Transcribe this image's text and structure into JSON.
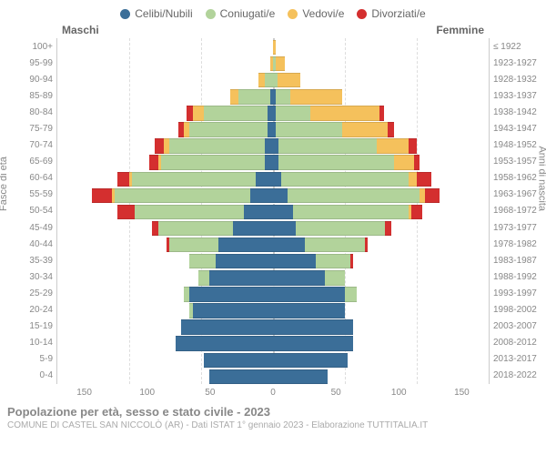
{
  "legend": [
    {
      "label": "Celibi/Nubili",
      "color": "#3b6e98"
    },
    {
      "label": "Coniugati/e",
      "color": "#b2d39b"
    },
    {
      "label": "Vedovi/e",
      "color": "#f5c15c"
    },
    {
      "label": "Divorziati/e",
      "color": "#d42f2f"
    }
  ],
  "column_headers": {
    "left": "Maschi",
    "right": "Femmine"
  },
  "y_axis_left_label": "Fasce di età",
  "y_axis_right_label": "Anni di nascita",
  "x_axis": {
    "max": 150,
    "ticks": [
      150,
      100,
      50,
      0,
      50,
      100,
      150
    ]
  },
  "age_bands": [
    {
      "age": "100+",
      "birth": "≤ 1922",
      "m": [
        0,
        0,
        0,
        0
      ],
      "f": [
        0,
        0,
        2,
        0
      ]
    },
    {
      "age": "95-99",
      "birth": "1923-1927",
      "m": [
        0,
        0,
        2,
        0
      ],
      "f": [
        0,
        2,
        6,
        0
      ]
    },
    {
      "age": "90-94",
      "birth": "1928-1932",
      "m": [
        0,
        6,
        4,
        0
      ],
      "f": [
        0,
        3,
        16,
        0
      ]
    },
    {
      "age": "85-89",
      "birth": "1933-1937",
      "m": [
        2,
        22,
        6,
        0
      ],
      "f": [
        2,
        10,
        36,
        0
      ]
    },
    {
      "age": "80-84",
      "birth": "1938-1942",
      "m": [
        4,
        44,
        8,
        4
      ],
      "f": [
        2,
        24,
        48,
        3
      ]
    },
    {
      "age": "75-79",
      "birth": "1943-1947",
      "m": [
        4,
        54,
        4,
        4
      ],
      "f": [
        2,
        46,
        32,
        4
      ]
    },
    {
      "age": "70-74",
      "birth": "1948-1952",
      "m": [
        6,
        66,
        4,
        6
      ],
      "f": [
        4,
        68,
        22,
        6
      ]
    },
    {
      "age": "65-69",
      "birth": "1953-1957",
      "m": [
        6,
        72,
        2,
        6
      ],
      "f": [
        4,
        80,
        14,
        4
      ]
    },
    {
      "age": "60-64",
      "birth": "1958-1962",
      "m": [
        12,
        86,
        2,
        8
      ],
      "f": [
        6,
        88,
        6,
        10
      ]
    },
    {
      "age": "55-59",
      "birth": "1963-1967",
      "m": [
        16,
        94,
        2,
        14
      ],
      "f": [
        10,
        92,
        4,
        10
      ]
    },
    {
      "age": "50-54",
      "birth": "1968-1972",
      "m": [
        20,
        76,
        0,
        12
      ],
      "f": [
        14,
        80,
        2,
        8
      ]
    },
    {
      "age": "45-49",
      "birth": "1973-1977",
      "m": [
        28,
        52,
        0,
        4
      ],
      "f": [
        16,
        62,
        0,
        4
      ]
    },
    {
      "age": "40-44",
      "birth": "1978-1982",
      "m": [
        38,
        34,
        0,
        2
      ],
      "f": [
        22,
        42,
        0,
        2
      ]
    },
    {
      "age": "35-39",
      "birth": "1983-1987",
      "m": [
        40,
        18,
        0,
        0
      ],
      "f": [
        30,
        24,
        0,
        2
      ]
    },
    {
      "age": "30-34",
      "birth": "1988-1992",
      "m": [
        44,
        8,
        0,
        0
      ],
      "f": [
        36,
        14,
        0,
        0
      ]
    },
    {
      "age": "25-29",
      "birth": "1993-1997",
      "m": [
        58,
        4,
        0,
        0
      ],
      "f": [
        50,
        8,
        0,
        0
      ]
    },
    {
      "age": "20-24",
      "birth": "1998-2002",
      "m": [
        56,
        2,
        0,
        0
      ],
      "f": [
        50,
        0,
        0,
        0
      ]
    },
    {
      "age": "15-19",
      "birth": "2003-2007",
      "m": [
        64,
        0,
        0,
        0
      ],
      "f": [
        56,
        0,
        0,
        0
      ]
    },
    {
      "age": "10-14",
      "birth": "2008-2012",
      "m": [
        68,
        0,
        0,
        0
      ],
      "f": [
        56,
        0,
        0,
        0
      ]
    },
    {
      "age": "5-9",
      "birth": "2013-2017",
      "m": [
        48,
        0,
        0,
        0
      ],
      "f": [
        52,
        0,
        0,
        0
      ]
    },
    {
      "age": "0-4",
      "birth": "2018-2022",
      "m": [
        44,
        0,
        0,
        0
      ],
      "f": [
        38,
        0,
        0,
        0
      ]
    }
  ],
  "footer": {
    "title": "Popolazione per età, sesso e stato civile - 2023",
    "subtitle": "COMUNE DI CASTEL SAN NICCOLÒ (AR) - Dati ISTAT 1° gennaio 2023 - Elaborazione TUTTITALIA.IT"
  },
  "style": {
    "background": "#ffffff",
    "grid_color": "#dddddd",
    "center_line_color": "#cccccc",
    "label_color": "#888888"
  }
}
